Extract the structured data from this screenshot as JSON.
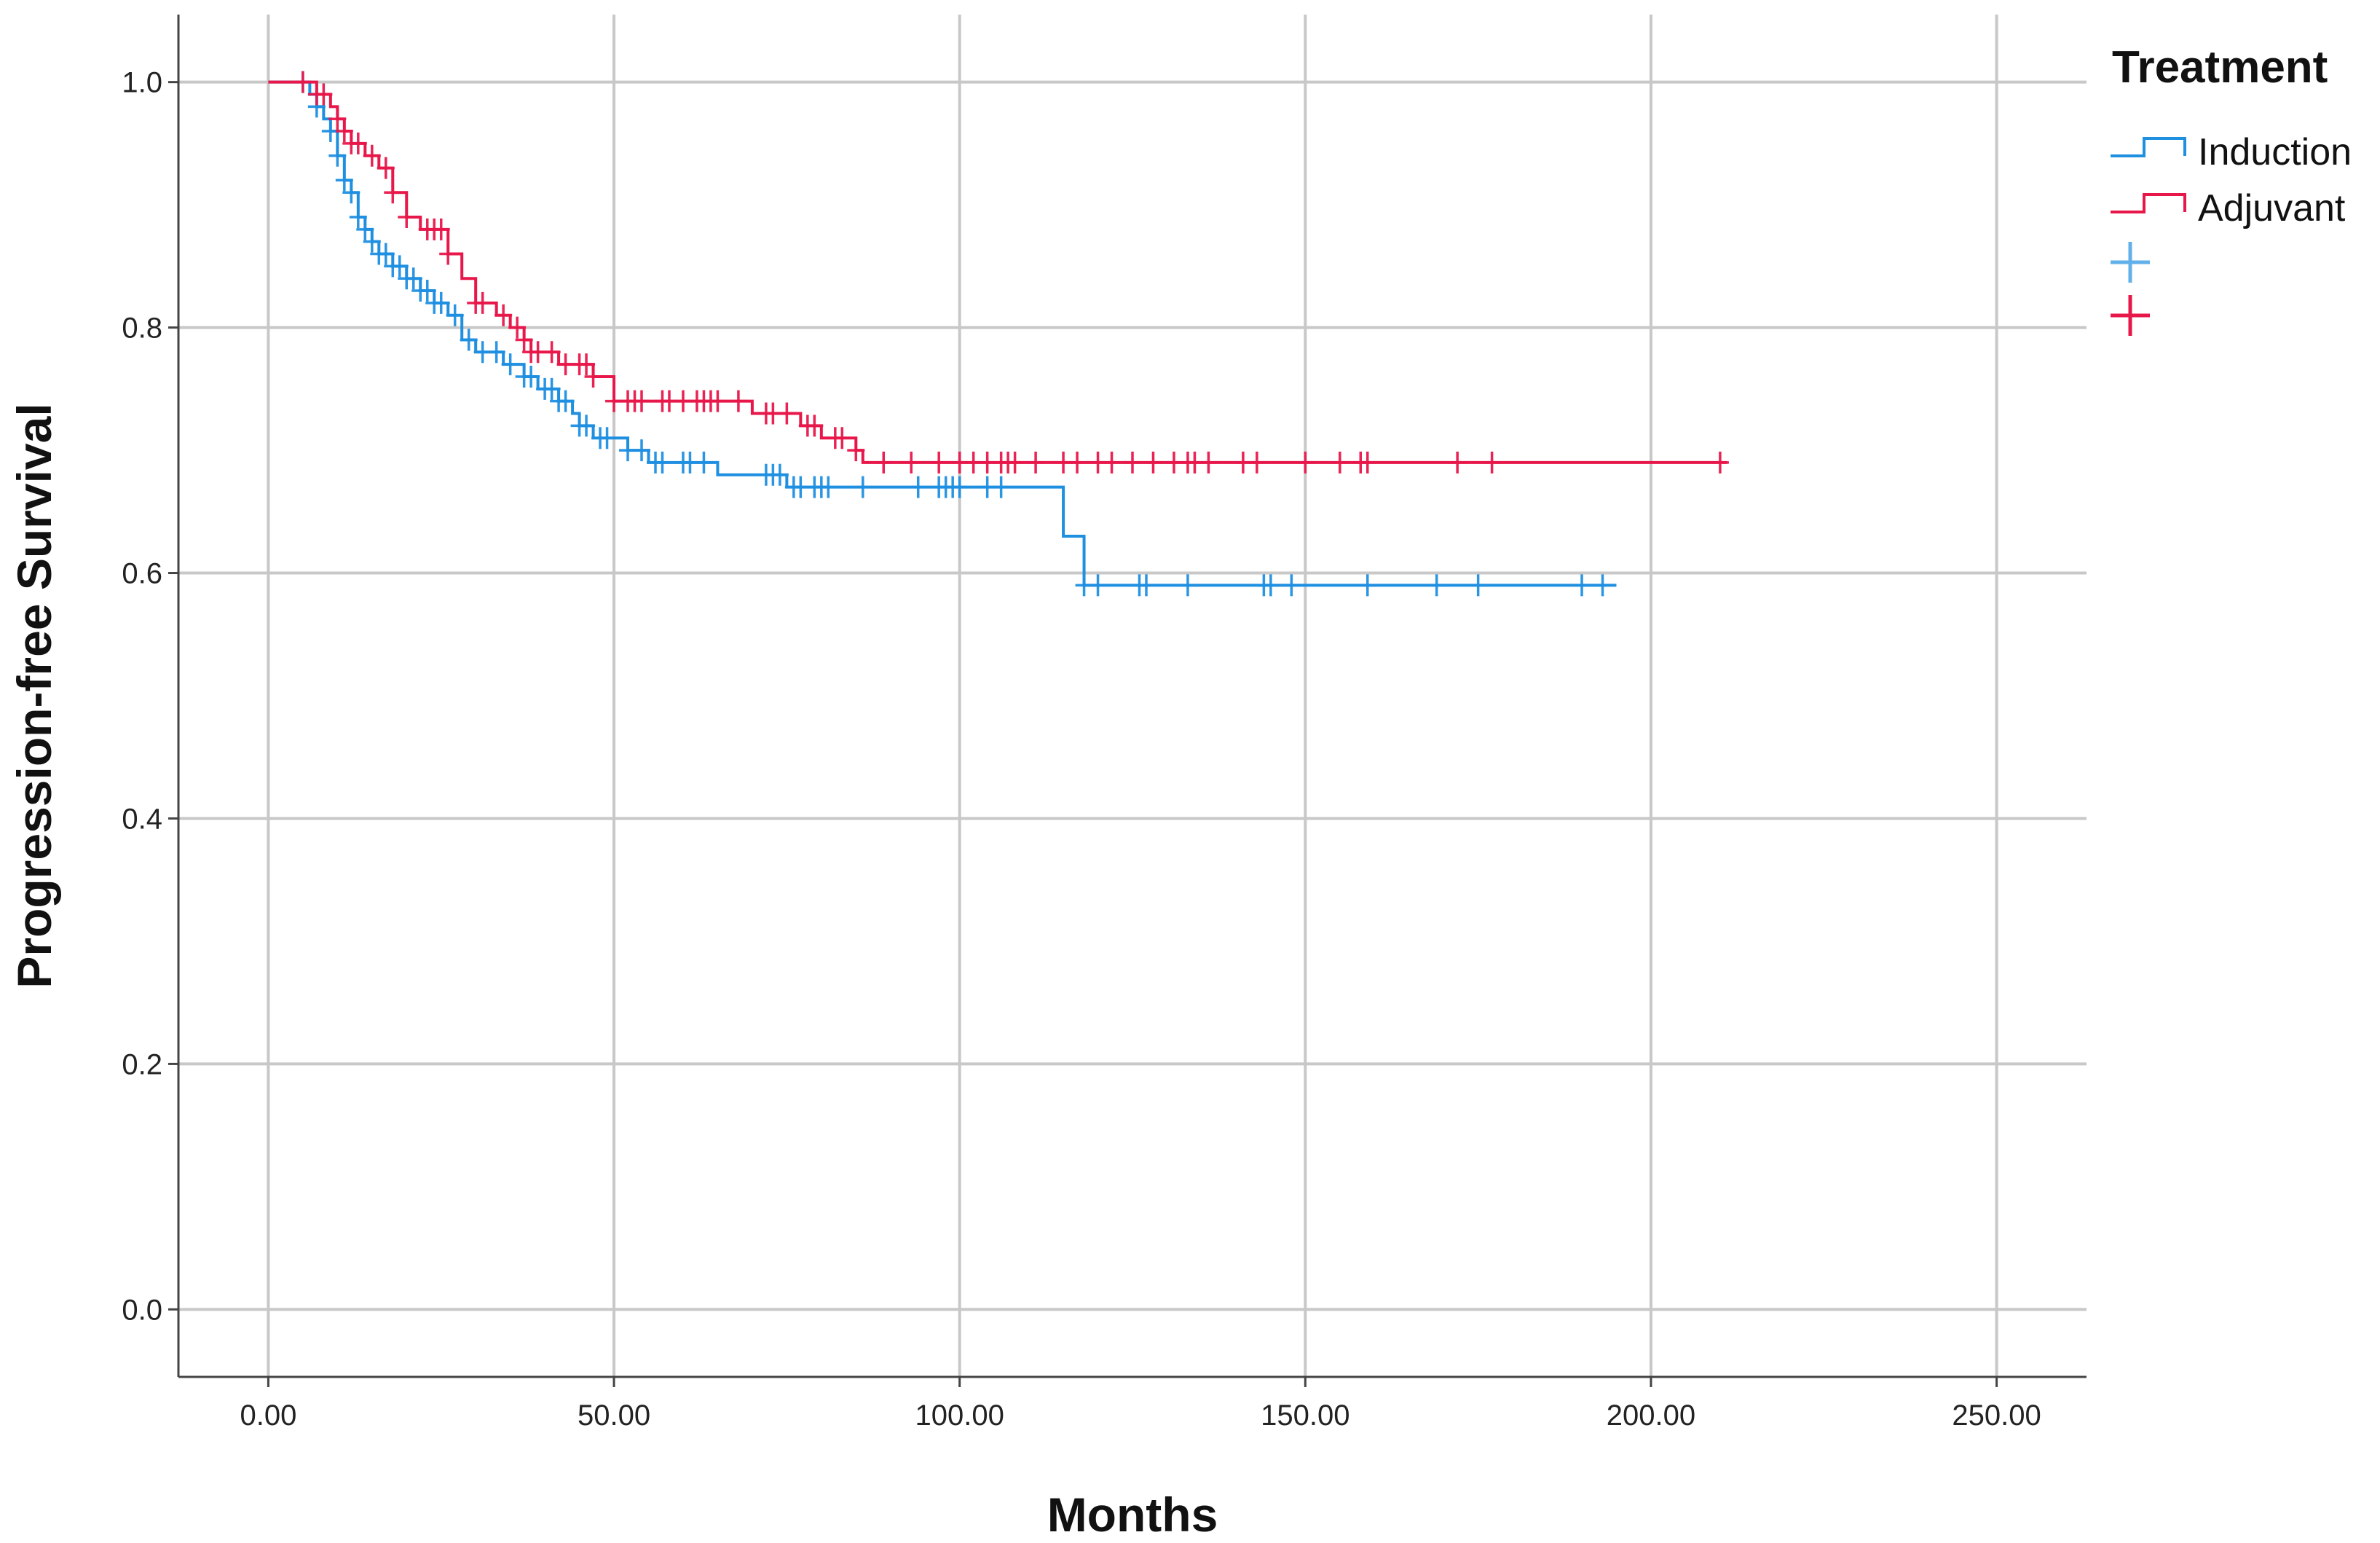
{
  "chart_data": {
    "type": "line",
    "subtype": "kaplan-meier step",
    "xlabel": "Months",
    "ylabel": "Progression-free Survival",
    "xlim": [
      -13,
      263
    ],
    "ylim": [
      -0.055,
      1.055
    ],
    "xticks": [
      0,
      50,
      100,
      150,
      200,
      250
    ],
    "xtick_labels": [
      "0.00",
      "50.00",
      "100.00",
      "150.00",
      "200.00",
      "250.00"
    ],
    "yticks": [
      0,
      0.2,
      0.4,
      0.6,
      0.8,
      1.0
    ],
    "ytick_labels": [
      "0.0",
      "0.2",
      "0.4",
      "0.6",
      "0.8",
      "1.0"
    ],
    "grid": true,
    "legend": {
      "title": "Treatment",
      "position": "right",
      "entries": [
        "Induction",
        "Adjuvant",
        "",
        ""
      ]
    },
    "series": [
      {
        "name": "Induction",
        "color": "#1f8fe0",
        "steps": [
          [
            0,
            1.0
          ],
          [
            6,
            0.99
          ],
          [
            7,
            0.98
          ],
          [
            8,
            0.97
          ],
          [
            9,
            0.96
          ],
          [
            10,
            0.94
          ],
          [
            11,
            0.92
          ],
          [
            12,
            0.91
          ],
          [
            13,
            0.89
          ],
          [
            14,
            0.88
          ],
          [
            15,
            0.87
          ],
          [
            16,
            0.86
          ],
          [
            18,
            0.85
          ],
          [
            20,
            0.84
          ],
          [
            22,
            0.83
          ],
          [
            24,
            0.82
          ],
          [
            26,
            0.81
          ],
          [
            28,
            0.79
          ],
          [
            30,
            0.78
          ],
          [
            34,
            0.77
          ],
          [
            37,
            0.76
          ],
          [
            39,
            0.75
          ],
          [
            42,
            0.74
          ],
          [
            44,
            0.73
          ],
          [
            45,
            0.72
          ],
          [
            47,
            0.71
          ],
          [
            52,
            0.7
          ],
          [
            55,
            0.69
          ],
          [
            65,
            0.68
          ],
          [
            75,
            0.67
          ],
          [
            115,
            0.63
          ],
          [
            118,
            0.59
          ]
        ],
        "end_x": 195,
        "censored": [
          5,
          7,
          9,
          10,
          11,
          12,
          13,
          14,
          15,
          16,
          17,
          18,
          19,
          20,
          21,
          22,
          23,
          24,
          25,
          27,
          29,
          31,
          33,
          35,
          37,
          38,
          40,
          41,
          42,
          43,
          45,
          46,
          48,
          49,
          52,
          54,
          56,
          57,
          60,
          61,
          63,
          72,
          73,
          74,
          76,
          77,
          79,
          80,
          81,
          86,
          94,
          97,
          98,
          99,
          100,
          104,
          106,
          118,
          120,
          126,
          127,
          133,
          144,
          145,
          148,
          159,
          169,
          175,
          190,
          193
        ]
      },
      {
        "name": "Adjuvant",
        "color": "#e8174a",
        "steps": [
          [
            0,
            1.0
          ],
          [
            7,
            0.99
          ],
          [
            9,
            0.98
          ],
          [
            10,
            0.97
          ],
          [
            11,
            0.96
          ],
          [
            12,
            0.95
          ],
          [
            14,
            0.94
          ],
          [
            16,
            0.93
          ],
          [
            18,
            0.91
          ],
          [
            20,
            0.89
          ],
          [
            22,
            0.88
          ],
          [
            26,
            0.86
          ],
          [
            28,
            0.84
          ],
          [
            30,
            0.82
          ],
          [
            33,
            0.81
          ],
          [
            35,
            0.8
          ],
          [
            37,
            0.79
          ],
          [
            38,
            0.78
          ],
          [
            42,
            0.77
          ],
          [
            47,
            0.76
          ],
          [
            50,
            0.74
          ],
          [
            70,
            0.73
          ],
          [
            77,
            0.72
          ],
          [
            80,
            0.71
          ],
          [
            85,
            0.7
          ],
          [
            86,
            0.69
          ]
        ],
        "end_x": 211,
        "censored": [
          5,
          7,
          8,
          10,
          11,
          12,
          13,
          15,
          17,
          18,
          20,
          23,
          24,
          25,
          26,
          30,
          31,
          34,
          36,
          37,
          38,
          39,
          41,
          43,
          45,
          46,
          47,
          50,
          52,
          53,
          54,
          57,
          58,
          60,
          62,
          63,
          64,
          65,
          68,
          72,
          73,
          75,
          78,
          79,
          82,
          83,
          85,
          89,
          93,
          97,
          100,
          102,
          104,
          106,
          107,
          108,
          111,
          115,
          117,
          120,
          122,
          125,
          128,
          131,
          133,
          134,
          136,
          141,
          143,
          150,
          155,
          158,
          159,
          172,
          177,
          210
        ]
      }
    ]
  }
}
